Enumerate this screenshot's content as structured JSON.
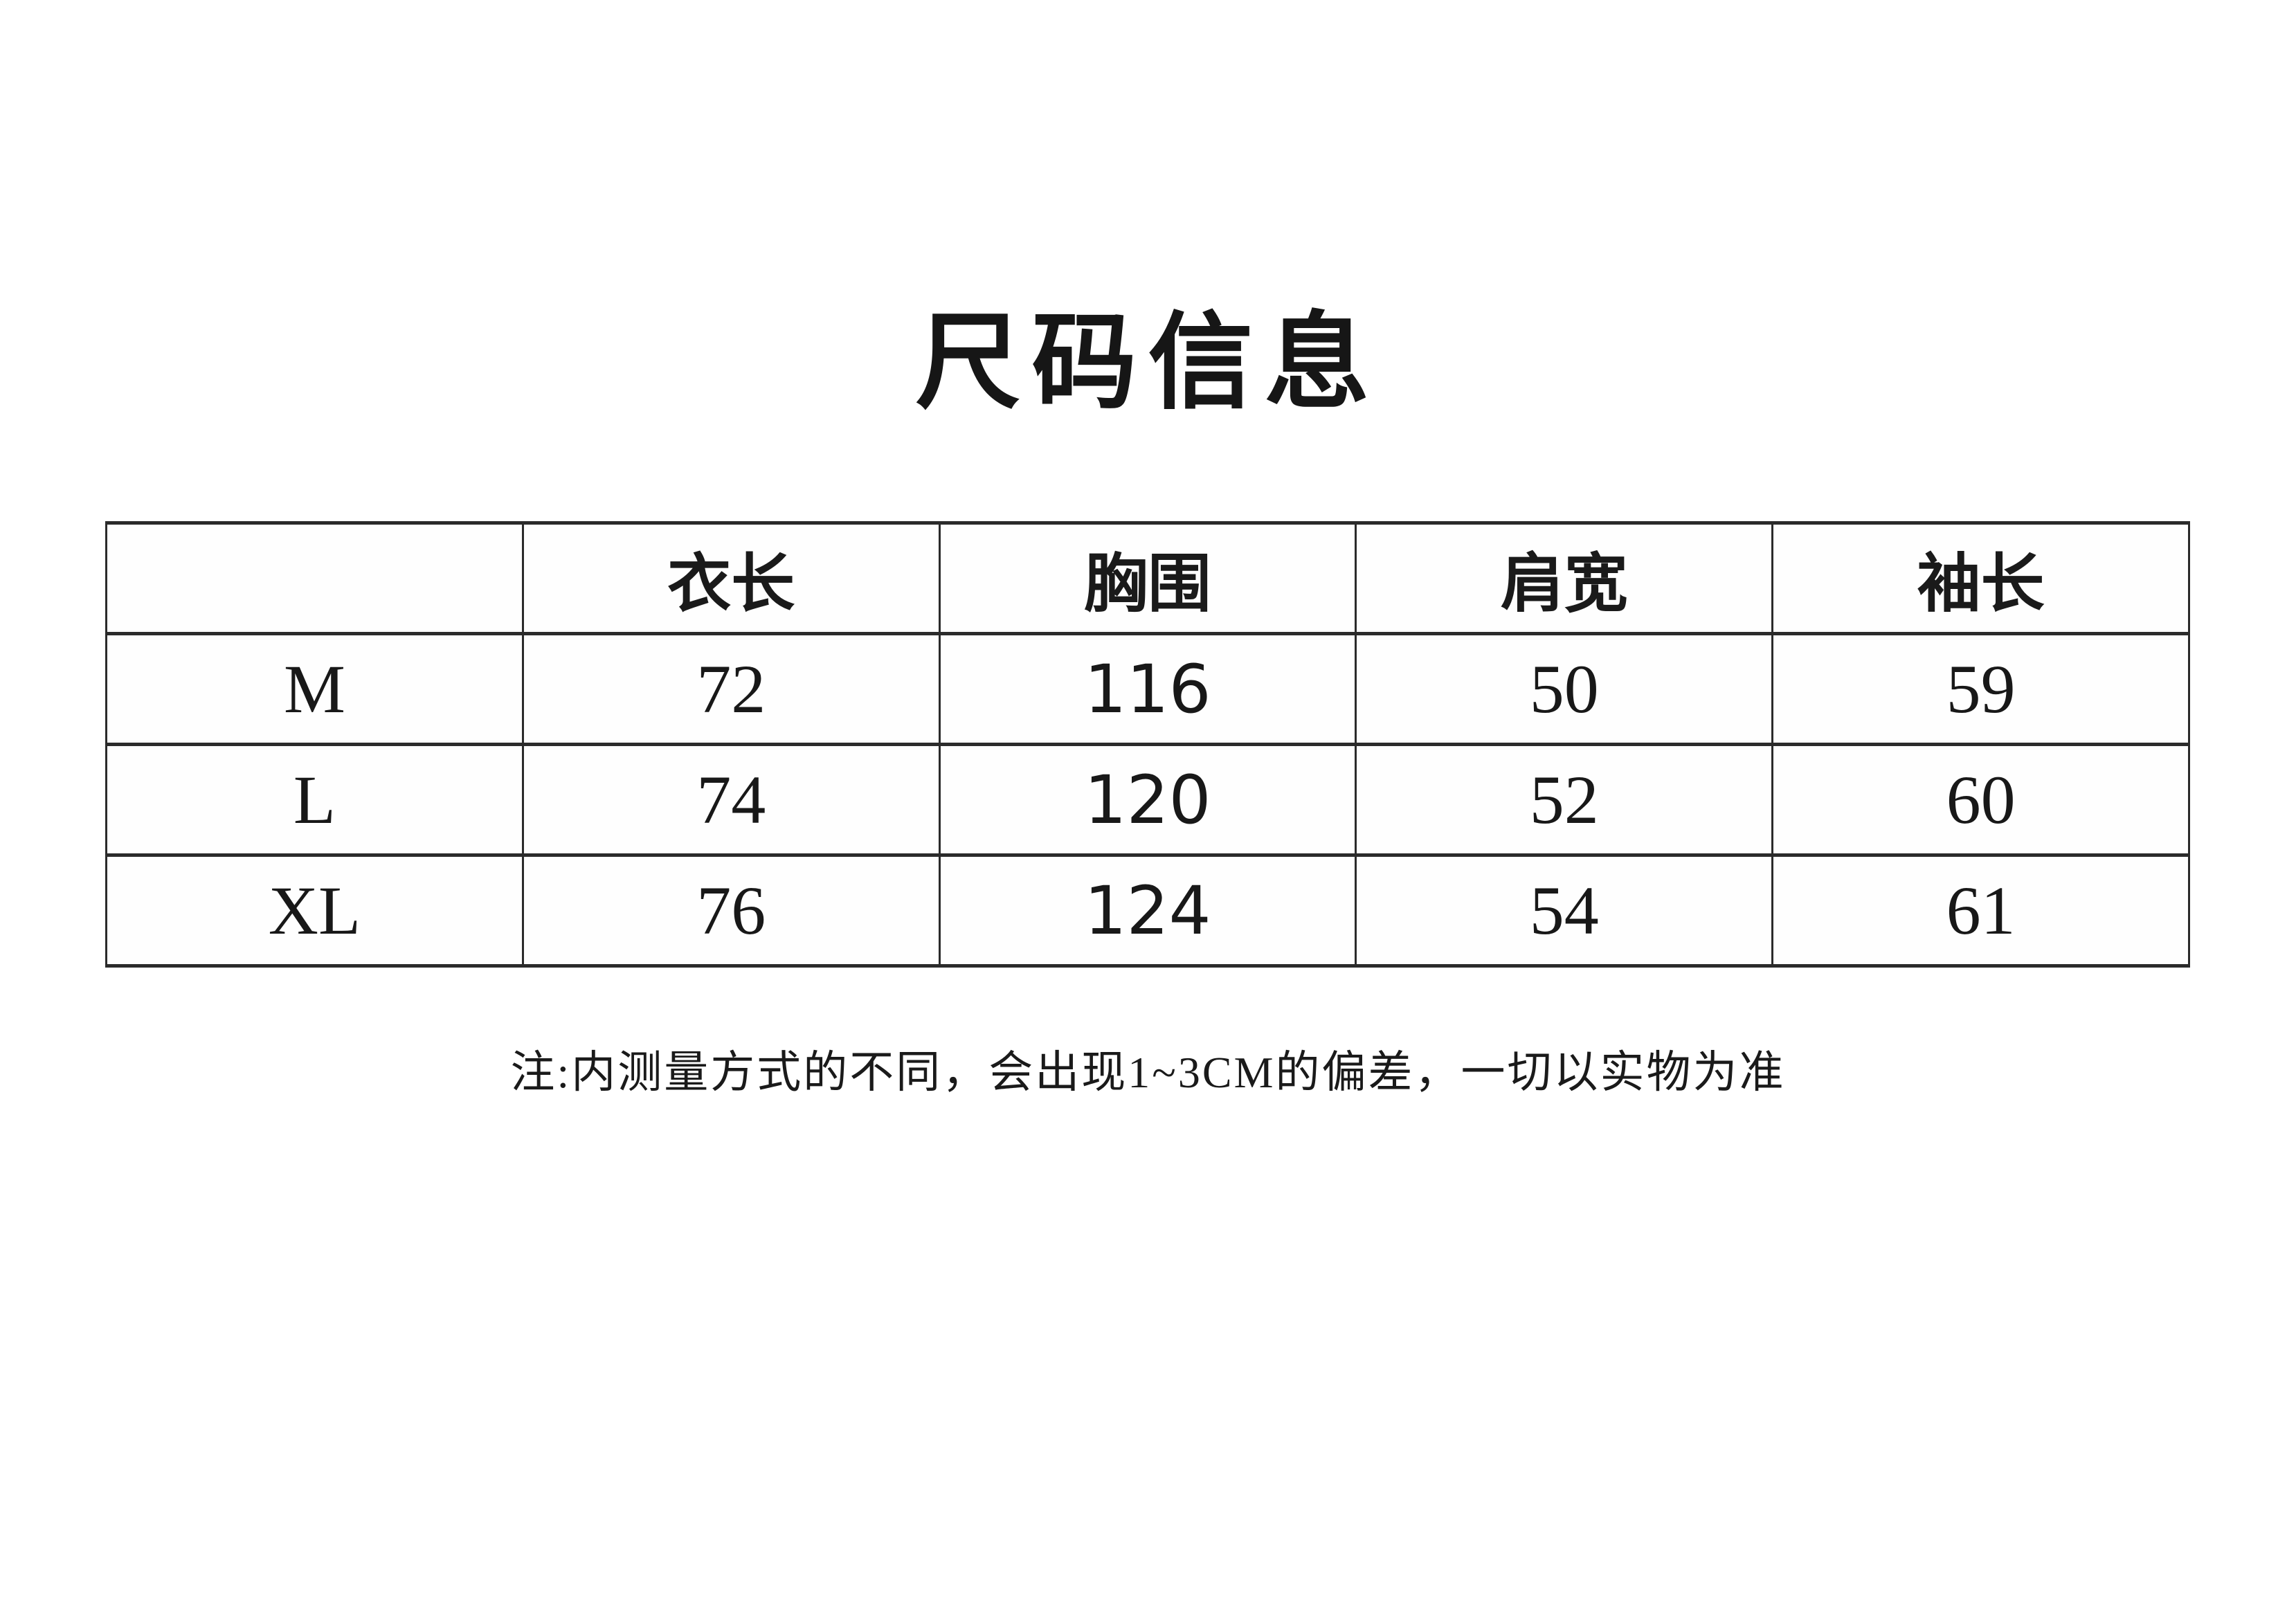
{
  "page": {
    "title": "尺码信息",
    "note": "注:内测量方式的不同，会出现1~3CM的偏差，一切以实物为准"
  },
  "size_table": {
    "columns": [
      "",
      "衣长",
      "胸围",
      "肩宽",
      "袖长"
    ],
    "rows": [
      {
        "size": "M",
        "values": [
          "72",
          "116",
          "50",
          "59"
        ]
      },
      {
        "size": "L",
        "values": [
          "74",
          "120",
          "52",
          "60"
        ]
      },
      {
        "size": "XL",
        "values": [
          "76",
          "124",
          "54",
          "61"
        ]
      }
    ]
  },
  "colors": {
    "text": "#1a1a1a",
    "border": "#2b2b2b",
    "background": "#ffffff"
  }
}
